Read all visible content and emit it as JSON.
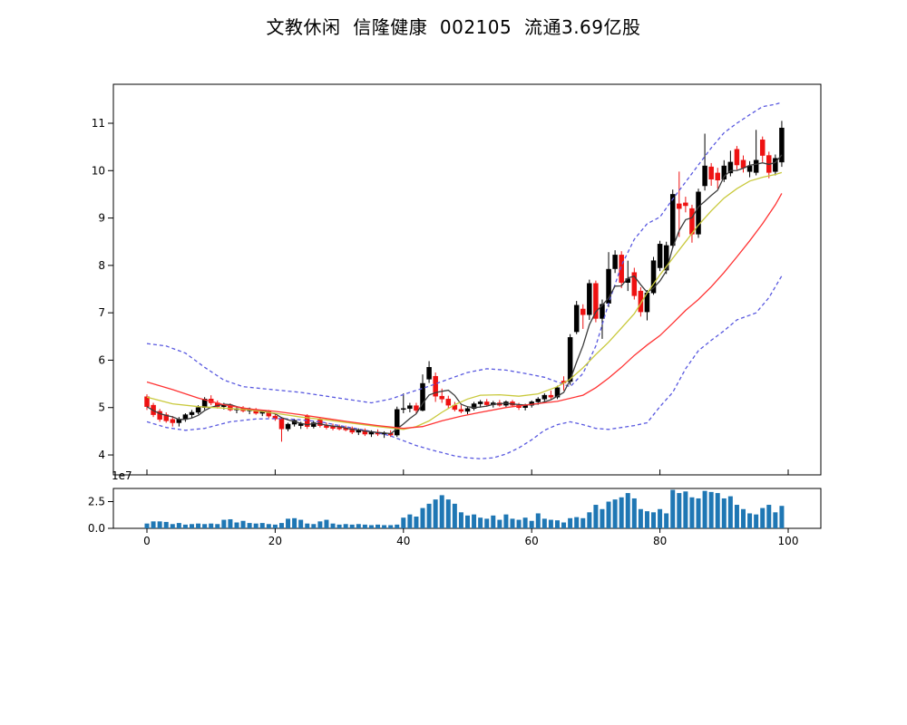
{
  "header": {
    "title": "文教休闲  信隆健康  002105  流通3.69亿股"
  },
  "chart_data": {
    "type": "candlestick",
    "title": "文教休闲  信隆健康  002105  流通3.69亿股",
    "panes": [
      "price",
      "volume"
    ],
    "x_axis": {
      "ticks": [
        0,
        20,
        40,
        60,
        80,
        100
      ],
      "range": [
        -5.2,
        105.2
      ]
    },
    "price_axis": {
      "ticks": [
        4,
        5,
        6,
        7,
        8,
        9,
        10,
        11
      ],
      "range": [
        3.58,
        11.82
      ]
    },
    "volume_axis": {
      "tick_labels": [
        "0.0",
        "2.5"
      ],
      "tick_values": [
        0,
        2.5
      ],
      "offset_label": "1e7",
      "unit_exponent": 7,
      "range": [
        0,
        3.73
      ]
    },
    "colors": {
      "up_candle": "#000000",
      "down_candle": "#ee1111",
      "ma_fast": "#3c3c3c",
      "ma_mid": "#c9c93c",
      "ma_slow": "#ff3333",
      "band": "#5959e0",
      "volume_bar": "#1f77b4",
      "axis": "#000000",
      "background": "#ffffff"
    },
    "candles_ohlc": [
      [
        5.23,
        5.28,
        4.95,
        5.02
      ],
      [
        5.05,
        5.1,
        4.8,
        4.85
      ],
      [
        4.92,
        4.97,
        4.7,
        4.75
      ],
      [
        4.85,
        4.9,
        4.68,
        4.72
      ],
      [
        4.75,
        4.82,
        4.6,
        4.68
      ],
      [
        4.68,
        4.8,
        4.6,
        4.75
      ],
      [
        4.75,
        4.88,
        4.7,
        4.85
      ],
      [
        4.85,
        4.95,
        4.78,
        4.9
      ],
      [
        4.9,
        5.05,
        4.86,
        5.0
      ],
      [
        5.0,
        5.22,
        4.95,
        5.18
      ],
      [
        5.18,
        5.26,
        5.05,
        5.1
      ],
      [
        5.1,
        5.15,
        4.98,
        5.02
      ],
      [
        5.02,
        5.1,
        4.96,
        5.06
      ],
      [
        5.06,
        5.09,
        4.92,
        4.95
      ],
      [
        4.95,
        5.02,
        4.88,
        4.98
      ],
      [
        4.98,
        5.03,
        4.9,
        4.93
      ],
      [
        4.93,
        5.0,
        4.86,
        4.96
      ],
      [
        4.96,
        4.99,
        4.85,
        4.88
      ],
      [
        4.88,
        4.95,
        4.82,
        4.92
      ],
      [
        4.92,
        4.95,
        4.78,
        4.82
      ],
      [
        4.82,
        4.86,
        4.72,
        4.76
      ],
      [
        4.76,
        4.8,
        4.28,
        4.55
      ],
      [
        4.55,
        4.68,
        4.5,
        4.65
      ],
      [
        4.65,
        4.76,
        4.6,
        4.73
      ],
      [
        4.62,
        4.7,
        4.55,
        4.66
      ],
      [
        4.82,
        4.86,
        4.55,
        4.6
      ],
      [
        4.6,
        4.72,
        4.56,
        4.68
      ],
      [
        4.74,
        4.78,
        4.58,
        4.62
      ],
      [
        4.62,
        4.68,
        4.54,
        4.58
      ],
      [
        4.6,
        4.66,
        4.52,
        4.56
      ],
      [
        4.58,
        4.64,
        4.52,
        4.55
      ],
      [
        4.56,
        4.62,
        4.5,
        4.53
      ],
      [
        4.56,
        4.6,
        4.44,
        4.48
      ],
      [
        4.48,
        4.56,
        4.42,
        4.52
      ],
      [
        4.52,
        4.56,
        4.4,
        4.44
      ],
      [
        4.44,
        4.52,
        4.38,
        4.48
      ],
      [
        4.48,
        4.54,
        4.4,
        4.44
      ],
      [
        4.44,
        4.5,
        4.36,
        4.46
      ],
      [
        4.46,
        4.52,
        4.38,
        4.42
      ],
      [
        4.42,
        5.02,
        4.38,
        4.96
      ],
      [
        4.96,
        5.3,
        4.88,
        4.98
      ],
      [
        4.98,
        5.1,
        4.9,
        5.04
      ],
      [
        5.04,
        5.1,
        4.88,
        4.94
      ],
      [
        4.94,
        5.7,
        4.92,
        5.51
      ],
      [
        5.6,
        5.98,
        5.52,
        5.85
      ],
      [
        5.66,
        5.74,
        5.12,
        5.24
      ],
      [
        5.24,
        5.4,
        5.1,
        5.18
      ],
      [
        5.18,
        5.25,
        4.98,
        5.05
      ],
      [
        5.05,
        5.12,
        4.92,
        4.96
      ],
      [
        4.96,
        5.05,
        4.88,
        4.92
      ],
      [
        4.92,
        5.02,
        4.86,
        4.98
      ],
      [
        4.98,
        5.12,
        4.94,
        5.08
      ],
      [
        5.08,
        5.16,
        5.0,
        5.12
      ],
      [
        5.12,
        5.18,
        5.02,
        5.06
      ],
      [
        5.06,
        5.14,
        5.0,
        5.1
      ],
      [
        5.1,
        5.16,
        5.02,
        5.05
      ],
      [
        5.05,
        5.15,
        5.0,
        5.12
      ],
      [
        5.12,
        5.16,
        5.02,
        5.05
      ],
      [
        5.05,
        5.1,
        4.95,
        5.0
      ],
      [
        5.0,
        5.08,
        4.94,
        5.05
      ],
      [
        5.05,
        5.15,
        5.0,
        5.12
      ],
      [
        5.12,
        5.22,
        5.06,
        5.18
      ],
      [
        5.18,
        5.3,
        5.12,
        5.26
      ],
      [
        5.26,
        5.36,
        5.18,
        5.22
      ],
      [
        5.22,
        5.46,
        5.18,
        5.42
      ],
      [
        5.56,
        5.66,
        5.36,
        5.52
      ],
      [
        5.55,
        6.55,
        5.48,
        6.48
      ],
      [
        6.6,
        7.25,
        6.55,
        7.16
      ],
      [
        7.08,
        7.18,
        6.66,
        6.96
      ],
      [
        6.96,
        7.7,
        6.85,
        7.62
      ],
      [
        7.62,
        7.68,
        6.8,
        6.88
      ],
      [
        6.88,
        7.28,
        6.45,
        7.18
      ],
      [
        7.2,
        8.28,
        7.12,
        7.92
      ],
      [
        7.93,
        8.32,
        7.84,
        8.22
      ],
      [
        8.22,
        8.3,
        7.52,
        7.64
      ],
      [
        7.64,
        8.1,
        7.46,
        7.72
      ],
      [
        7.85,
        7.95,
        7.28,
        7.36
      ],
      [
        7.46,
        7.54,
        6.92,
        7.02
      ],
      [
        7.02,
        7.48,
        6.84,
        7.42
      ],
      [
        7.42,
        8.18,
        7.38,
        8.1
      ],
      [
        7.95,
        8.52,
        7.88,
        8.45
      ],
      [
        7.9,
        8.5,
        7.82,
        8.42
      ],
      [
        8.42,
        9.6,
        8.36,
        9.5
      ],
      [
        9.3,
        9.98,
        8.6,
        9.2
      ],
      [
        9.32,
        9.45,
        9.12,
        9.26
      ],
      [
        9.2,
        9.28,
        8.48,
        8.66
      ],
      [
        8.66,
        9.62,
        8.58,
        9.55
      ],
      [
        9.68,
        10.78,
        9.58,
        10.1
      ],
      [
        10.08,
        10.16,
        9.68,
        9.82
      ],
      [
        9.95,
        10.06,
        9.62,
        9.8
      ],
      [
        9.82,
        10.22,
        9.76,
        10.1
      ],
      [
        9.95,
        10.42,
        9.88,
        10.18
      ],
      [
        10.45,
        10.52,
        10.02,
        10.12
      ],
      [
        10.22,
        10.32,
        9.96,
        10.06
      ],
      [
        9.98,
        10.2,
        9.86,
        10.1
      ],
      [
        9.96,
        10.86,
        9.9,
        10.22
      ],
      [
        10.65,
        10.72,
        10.18,
        10.32
      ],
      [
        10.32,
        10.4,
        9.84,
        9.96
      ],
      [
        9.98,
        10.34,
        9.9,
        10.26
      ],
      [
        10.18,
        11.05,
        10.08,
        10.9
      ]
    ],
    "volume_1e7": [
      0.45,
      0.65,
      0.65,
      0.6,
      0.4,
      0.5,
      0.35,
      0.4,
      0.45,
      0.4,
      0.45,
      0.4,
      0.8,
      0.85,
      0.55,
      0.7,
      0.5,
      0.45,
      0.5,
      0.4,
      0.35,
      0.5,
      0.9,
      0.95,
      0.8,
      0.45,
      0.4,
      0.65,
      0.8,
      0.45,
      0.35,
      0.4,
      0.35,
      0.4,
      0.35,
      0.3,
      0.35,
      0.3,
      0.3,
      0.35,
      1.0,
      1.3,
      1.1,
      1.9,
      2.3,
      2.7,
      3.1,
      2.7,
      2.3,
      1.5,
      1.2,
      1.3,
      1.0,
      0.9,
      1.2,
      0.8,
      1.3,
      0.9,
      0.8,
      1.0,
      0.7,
      1.4,
      0.9,
      0.8,
      0.75,
      0.55,
      0.95,
      1.05,
      0.95,
      1.5,
      2.2,
      1.8,
      2.5,
      2.7,
      2.9,
      3.3,
      2.8,
      1.8,
      1.6,
      1.5,
      1.8,
      1.4,
      3.6,
      3.3,
      3.45,
      2.9,
      2.8,
      3.5,
      3.4,
      3.3,
      2.8,
      3.0,
      2.2,
      1.8,
      1.4,
      1.3,
      1.9,
      2.2,
      1.5,
      2.1
    ],
    "overlays": {
      "ma_fast": {
        "style": "solid",
        "source": "ma5_of_close"
      },
      "ma_mid_keypoints": [
        [
          0,
          5.22
        ],
        [
          4,
          5.08
        ],
        [
          8,
          5.02
        ],
        [
          12,
          4.99
        ],
        [
          16,
          4.95
        ],
        [
          20,
          4.88
        ],
        [
          24,
          4.8
        ],
        [
          28,
          4.74
        ],
        [
          32,
          4.67
        ],
        [
          36,
          4.6
        ],
        [
          40,
          4.54
        ],
        [
          42,
          4.6
        ],
        [
          44,
          4.72
        ],
        [
          46,
          4.9
        ],
        [
          48,
          5.06
        ],
        [
          50,
          5.18
        ],
        [
          52,
          5.26
        ],
        [
          55,
          5.27
        ],
        [
          58,
          5.24
        ],
        [
          61,
          5.29
        ],
        [
          64,
          5.44
        ],
        [
          66,
          5.6
        ],
        [
          68,
          5.84
        ],
        [
          70,
          6.12
        ],
        [
          72,
          6.38
        ],
        [
          74,
          6.68
        ],
        [
          76,
          6.98
        ],
        [
          78,
          7.42
        ],
        [
          80,
          7.8
        ],
        [
          82,
          8.15
        ],
        [
          84,
          8.5
        ],
        [
          86,
          8.85
        ],
        [
          88,
          9.15
        ],
        [
          90,
          9.42
        ],
        [
          92,
          9.62
        ],
        [
          94,
          9.78
        ],
        [
          96,
          9.86
        ],
        [
          98,
          9.92
        ],
        [
          99,
          9.96
        ]
      ],
      "ma_slow_keypoints": [
        [
          0,
          5.54
        ],
        [
          4,
          5.38
        ],
        [
          8,
          5.2
        ],
        [
          12,
          5.06
        ],
        [
          16,
          4.97
        ],
        [
          20,
          4.92
        ],
        [
          24,
          4.85
        ],
        [
          28,
          4.77
        ],
        [
          32,
          4.69
        ],
        [
          36,
          4.62
        ],
        [
          40,
          4.56
        ],
        [
          43,
          4.6
        ],
        [
          46,
          4.72
        ],
        [
          49,
          4.82
        ],
        [
          52,
          4.9
        ],
        [
          56,
          5.0
        ],
        [
          60,
          5.07
        ],
        [
          64,
          5.13
        ],
        [
          68,
          5.26
        ],
        [
          70,
          5.42
        ],
        [
          72,
          5.62
        ],
        [
          74,
          5.85
        ],
        [
          76,
          6.1
        ],
        [
          78,
          6.32
        ],
        [
          80,
          6.52
        ],
        [
          82,
          6.78
        ],
        [
          84,
          7.05
        ],
        [
          86,
          7.28
        ],
        [
          88,
          7.55
        ],
        [
          90,
          7.85
        ],
        [
          92,
          8.18
        ],
        [
          94,
          8.52
        ],
        [
          96,
          8.88
        ],
        [
          98,
          9.28
        ],
        [
          99,
          9.52
        ]
      ],
      "band_upper_keypoints": [
        [
          0,
          6.35
        ],
        [
          3,
          6.3
        ],
        [
          6,
          6.15
        ],
        [
          9,
          5.85
        ],
        [
          12,
          5.58
        ],
        [
          15,
          5.44
        ],
        [
          18,
          5.4
        ],
        [
          21,
          5.36
        ],
        [
          24,
          5.32
        ],
        [
          28,
          5.24
        ],
        [
          32,
          5.16
        ],
        [
          35,
          5.1
        ],
        [
          38,
          5.18
        ],
        [
          41,
          5.32
        ],
        [
          44,
          5.45
        ],
        [
          47,
          5.6
        ],
        [
          50,
          5.74
        ],
        [
          53,
          5.82
        ],
        [
          56,
          5.79
        ],
        [
          59,
          5.72
        ],
        [
          62,
          5.64
        ],
        [
          64,
          5.54
        ],
        [
          66,
          5.44
        ],
        [
          68,
          5.72
        ],
        [
          70,
          6.3
        ],
        [
          72,
          7.2
        ],
        [
          74,
          8.0
        ],
        [
          76,
          8.55
        ],
        [
          78,
          8.88
        ],
        [
          80,
          9.02
        ],
        [
          82,
          9.4
        ],
        [
          84,
          9.76
        ],
        [
          86,
          10.12
        ],
        [
          88,
          10.48
        ],
        [
          90,
          10.8
        ],
        [
          92,
          11.0
        ],
        [
          94,
          11.18
        ],
        [
          96,
          11.35
        ],
        [
          98,
          11.4
        ],
        [
          99,
          11.44
        ]
      ],
      "band_lower_keypoints": [
        [
          0,
          4.7
        ],
        [
          3,
          4.58
        ],
        [
          6,
          4.52
        ],
        [
          9,
          4.56
        ],
        [
          13,
          4.7
        ],
        [
          17,
          4.76
        ],
        [
          21,
          4.77
        ],
        [
          24,
          4.74
        ],
        [
          27,
          4.7
        ],
        [
          30,
          4.62
        ],
        [
          33,
          4.55
        ],
        [
          36,
          4.47
        ],
        [
          38,
          4.4
        ],
        [
          40,
          4.3
        ],
        [
          42,
          4.2
        ],
        [
          44,
          4.12
        ],
        [
          46,
          4.05
        ],
        [
          48,
          3.98
        ],
        [
          50,
          3.94
        ],
        [
          52,
          3.92
        ],
        [
          54,
          3.94
        ],
        [
          56,
          4.02
        ],
        [
          58,
          4.15
        ],
        [
          60,
          4.32
        ],
        [
          62,
          4.52
        ],
        [
          64,
          4.64
        ],
        [
          66,
          4.7
        ],
        [
          68,
          4.64
        ],
        [
          70,
          4.56
        ],
        [
          72,
          4.54
        ],
        [
          74,
          4.58
        ],
        [
          76,
          4.62
        ],
        [
          78,
          4.68
        ],
        [
          80,
          5.02
        ],
        [
          82,
          5.32
        ],
        [
          84,
          5.82
        ],
        [
          86,
          6.2
        ],
        [
          88,
          6.42
        ],
        [
          90,
          6.62
        ],
        [
          92,
          6.85
        ],
        [
          94,
          6.95
        ],
        [
          95,
          7.0
        ],
        [
          97,
          7.32
        ],
        [
          99,
          7.78
        ]
      ]
    }
  }
}
